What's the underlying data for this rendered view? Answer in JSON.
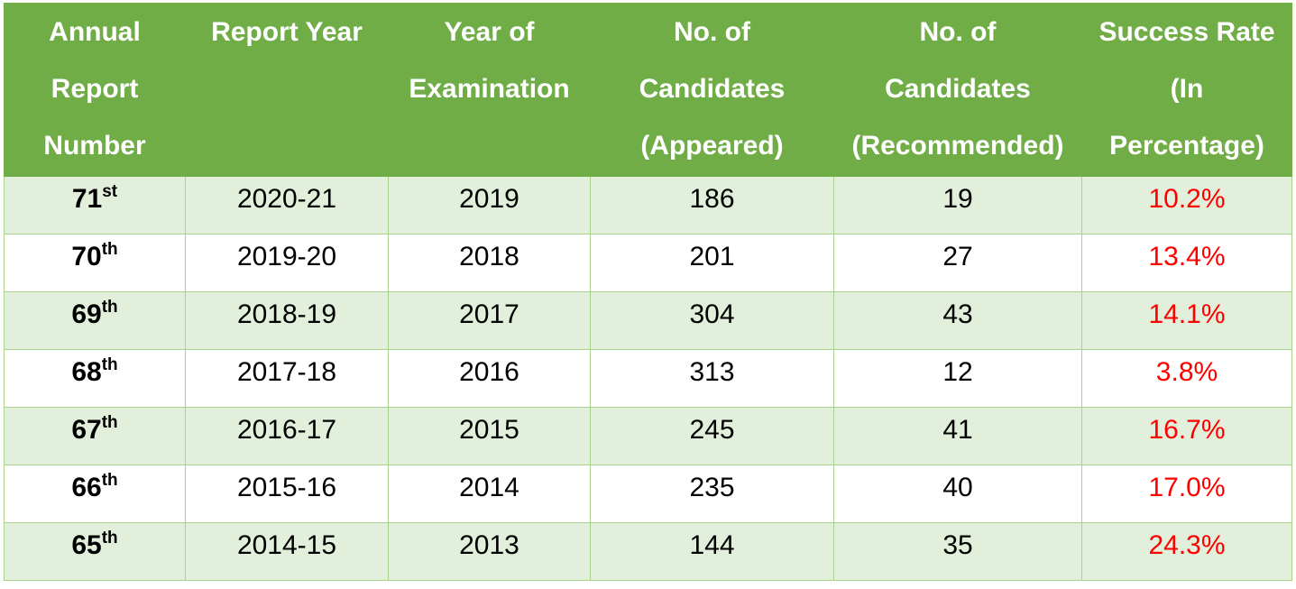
{
  "colors": {
    "header_bg": "#70ad47",
    "header_text": "#ffffff",
    "row_band": "#e2efda",
    "row_plain": "#ffffff",
    "grid_line": "#a9d08e",
    "rate_text": "#ff0000"
  },
  "chart_data": {
    "type": "table",
    "columns": [
      {
        "key": "report_number",
        "lines": [
          "Annual",
          "Report",
          "Number"
        ]
      },
      {
        "key": "report_year",
        "lines": [
          "Report Year"
        ]
      },
      {
        "key": "exam_year",
        "lines": [
          "Year of",
          "Examination"
        ]
      },
      {
        "key": "appeared",
        "lines": [
          "No. of",
          "Candidates",
          "(Appeared)"
        ]
      },
      {
        "key": "recommended",
        "lines": [
          "No. of",
          "Candidates",
          "(Recommended)"
        ]
      },
      {
        "key": "success_rate",
        "lines": [
          "Success Rate",
          "(In",
          "Percentage)"
        ]
      }
    ],
    "rows": [
      {
        "number": "71",
        "suffix": "st",
        "report_year": "2020-21",
        "exam_year": "2019",
        "appeared": "186",
        "recommended": "19",
        "success_rate": "10.2%"
      },
      {
        "number": "70",
        "suffix": "th",
        "report_year": "2019-20",
        "exam_year": "2018",
        "appeared": "201",
        "recommended": "27",
        "success_rate": "13.4%"
      },
      {
        "number": "69",
        "suffix": "th",
        "report_year": "2018-19",
        "exam_year": "2017",
        "appeared": "304",
        "recommended": "43",
        "success_rate": "14.1%"
      },
      {
        "number": "68",
        "suffix": "th",
        "report_year": "2017-18",
        "exam_year": "2016",
        "appeared": "313",
        "recommended": "12",
        "success_rate": "3.8%"
      },
      {
        "number": "67",
        "suffix": "th",
        "report_year": "2016-17",
        "exam_year": "2015",
        "appeared": "245",
        "recommended": "41",
        "success_rate": "16.7%"
      },
      {
        "number": "66",
        "suffix": "th",
        "report_year": "2015-16",
        "exam_year": "2014",
        "appeared": "235",
        "recommended": "40",
        "success_rate": "17.0%"
      },
      {
        "number": "65",
        "suffix": "th",
        "report_year": "2014-15",
        "exam_year": "2013",
        "appeared": "144",
        "recommended": "35",
        "success_rate": "24.3%"
      }
    ]
  }
}
